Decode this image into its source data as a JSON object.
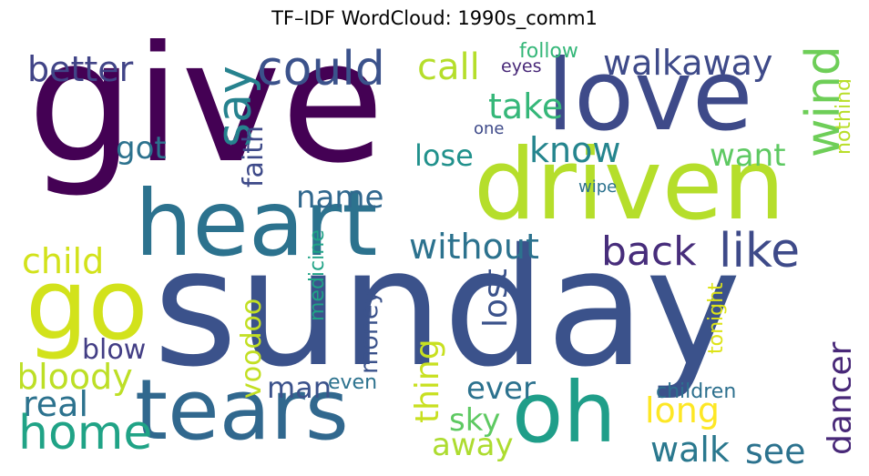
{
  "title": "TF–IDF WordCloud: 1990s_comm1",
  "words": [
    {
      "text": "give",
      "color": "#440154",
      "vertical": false
    },
    {
      "text": "sunday",
      "color": "#3b528b",
      "vertical": false
    },
    {
      "text": "love",
      "color": "#3e4a89",
      "vertical": false
    },
    {
      "text": "driven",
      "color": "#b5de2b",
      "vertical": false
    },
    {
      "text": "heart",
      "color": "#2c728e",
      "vertical": false
    },
    {
      "text": "tears",
      "color": "#31688e",
      "vertical": false
    },
    {
      "text": "go",
      "color": "#d2e21b",
      "vertical": false
    },
    {
      "text": "oh",
      "color": "#1f9e89",
      "vertical": false
    },
    {
      "text": "could",
      "color": "#3b528b",
      "vertical": false
    },
    {
      "text": "say",
      "color": "#26828e",
      "vertical": true
    },
    {
      "text": "better",
      "color": "#414487",
      "vertical": false
    },
    {
      "text": "call",
      "color": "#b5de2b",
      "vertical": false
    },
    {
      "text": "walkaway",
      "color": "#3e4a89",
      "vertical": false
    },
    {
      "text": "wind",
      "color": "#6ece58",
      "vertical": true
    },
    {
      "text": "follow",
      "color": "#35b779",
      "vertical": false
    },
    {
      "text": "eyes",
      "color": "#482878",
      "vertical": false
    },
    {
      "text": "nothing",
      "color": "#b8de29",
      "vertical": true
    },
    {
      "text": "take",
      "color": "#35b779",
      "vertical": false
    },
    {
      "text": "one",
      "color": "#3e4a89",
      "vertical": false
    },
    {
      "text": "got",
      "color": "#2c728e",
      "vertical": false
    },
    {
      "text": "faith",
      "color": "#3e4a89",
      "vertical": true
    },
    {
      "text": "lose",
      "color": "#21918c",
      "vertical": false
    },
    {
      "text": "know",
      "color": "#25858e",
      "vertical": false
    },
    {
      "text": "want",
      "color": "#5ec962",
      "vertical": false
    },
    {
      "text": "wipe",
      "color": "#2c728e",
      "vertical": false
    },
    {
      "text": "name",
      "color": "#31688e",
      "vertical": false
    },
    {
      "text": "without",
      "color": "#2c728e",
      "vertical": false
    },
    {
      "text": "back",
      "color": "#472d7b",
      "vertical": false
    },
    {
      "text": "like",
      "color": "#3e4a89",
      "vertical": false
    },
    {
      "text": "child",
      "color": "#d2e21b",
      "vertical": false
    },
    {
      "text": "medicine",
      "color": "#20a386",
      "vertical": true
    },
    {
      "text": "lost",
      "color": "#3b528b",
      "vertical": true
    },
    {
      "text": "voodoo",
      "color": "#c2df23",
      "vertical": true
    },
    {
      "text": "money",
      "color": "#3b528b",
      "vertical": true
    },
    {
      "text": "tonight",
      "color": "#dde318",
      "vertical": true
    },
    {
      "text": "blow",
      "color": "#433e85",
      "vertical": false
    },
    {
      "text": "thing",
      "color": "#c8e020",
      "vertical": true
    },
    {
      "text": "dancer",
      "color": "#482878",
      "vertical": true
    },
    {
      "text": "bloody",
      "color": "#bddf26",
      "vertical": false
    },
    {
      "text": "man",
      "color": "#3b528b",
      "vertical": false
    },
    {
      "text": "even",
      "color": "#2c728e",
      "vertical": false
    },
    {
      "text": "ever",
      "color": "#2c728e",
      "vertical": false
    },
    {
      "text": "children",
      "color": "#2d708e",
      "vertical": false
    },
    {
      "text": "real",
      "color": "#2c728e",
      "vertical": false
    },
    {
      "text": "long",
      "color": "#fde725",
      "vertical": false
    },
    {
      "text": "home",
      "color": "#20a386",
      "vertical": false
    },
    {
      "text": "sky",
      "color": "#5ec962",
      "vertical": false
    },
    {
      "text": "away",
      "color": "#addc30",
      "vertical": false
    },
    {
      "text": "walk",
      "color": "#2a788e",
      "vertical": false
    },
    {
      "text": "see",
      "color": "#2c728e",
      "vertical": false
    }
  ]
}
